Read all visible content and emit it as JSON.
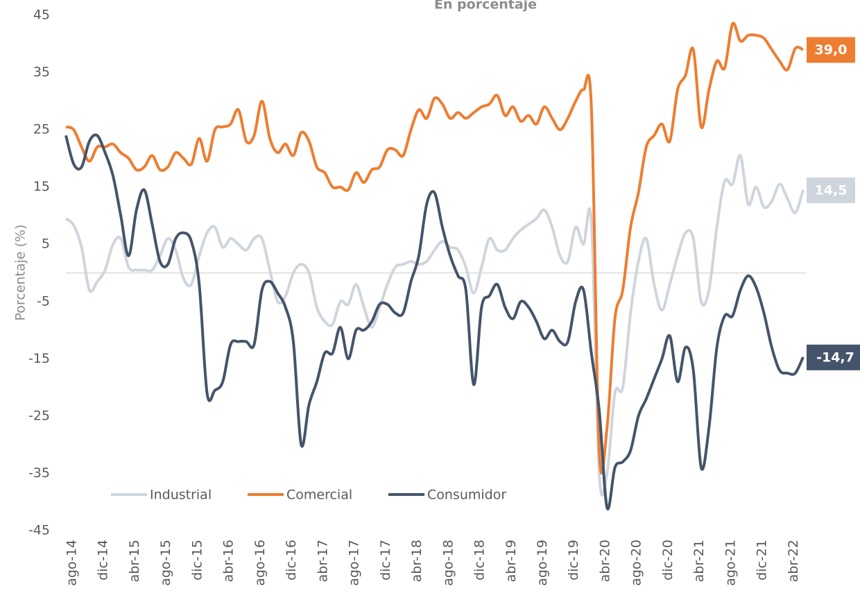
{
  "chart_data": {
    "type": "line",
    "subtitle": "En porcentaje",
    "y_label": "Porcentaje (%)",
    "categories": [
      "ago-14",
      null,
      null,
      null,
      "dic-14",
      null,
      null,
      null,
      "abr-15",
      null,
      null,
      null,
      "ago-15",
      null,
      null,
      null,
      "dic-15",
      null,
      null,
      null,
      "abr-16",
      null,
      null,
      null,
      "ago-16",
      null,
      null,
      null,
      "dic-16",
      null,
      null,
      null,
      "abr-17",
      null,
      null,
      null,
      "ago-17",
      null,
      null,
      null,
      "dic-17",
      null,
      null,
      null,
      "abr-18",
      null,
      null,
      null,
      "ago-18",
      null,
      null,
      null,
      "dic-18",
      null,
      null,
      null,
      "abr-19",
      null,
      null,
      null,
      "ago-19",
      null,
      null,
      null,
      "dic-19",
      null,
      null,
      null,
      "abr-20",
      null,
      null,
      null,
      "ago-20",
      null,
      null,
      null,
      "dic-20",
      null,
      null,
      null,
      "abr-21",
      null,
      null,
      null,
      "ago-21",
      null,
      null,
      null,
      "dic-21",
      null,
      null,
      null,
      "abr-22",
      null,
      null
    ],
    "ylim": [
      -45,
      45
    ],
    "yticks": [
      -45,
      -35,
      -25,
      -15,
      -5,
      5,
      15,
      25,
      35,
      45
    ],
    "legend": "bottom-left",
    "series": [
      {
        "name": "Industrial",
        "color": "#cfd5dd",
        "end_label": "14,5",
        "values": [
          9.5,
          8.3,
          4.5,
          -3,
          -1.5,
          0.5,
          5,
          6,
          1,
          0.5,
          0.5,
          0.5,
          3,
          6,
          4,
          -1,
          -2,
          3,
          7,
          8,
          4.5,
          6,
          5,
          4,
          6,
          6,
          0.5,
          -5,
          -4,
          0,
          1.5,
          0,
          -6,
          -8.5,
          -9,
          -5,
          -5.5,
          -2,
          -6,
          -9.5,
          -6,
          -2,
          1,
          1.5,
          2,
          1.5,
          2,
          4,
          5.5,
          4.5,
          4,
          1,
          -3.5,
          1,
          6,
          4,
          4,
          6,
          7.5,
          8.5,
          9.5,
          11,
          8,
          3,
          2,
          8,
          5,
          9,
          -35,
          -35,
          -21,
          -20,
          -7,
          2,
          6,
          -2,
          -6.5,
          -2,
          3,
          7,
          6,
          -5,
          -3,
          8,
          16,
          15.5,
          20.5,
          12,
          15,
          11.5,
          12.5,
          15.5,
          13,
          10.5,
          14.5
        ]
      },
      {
        "name": "Comercial",
        "color": "#ed7d31",
        "end_label": "39,0",
        "values": [
          25.5,
          25,
          22,
          19.5,
          22,
          22,
          22.5,
          21,
          20,
          18,
          18.5,
          20.5,
          18,
          18.5,
          21,
          20,
          19,
          23.5,
          19.5,
          25,
          25.5,
          26,
          28.5,
          23,
          24,
          30,
          23.5,
          21,
          22.5,
          20.5,
          24.5,
          23,
          18.5,
          17.5,
          15,
          15,
          14.5,
          17.5,
          15.8,
          18,
          18.5,
          21.5,
          21.5,
          20.5,
          25,
          28.5,
          27,
          30.5,
          29.5,
          27,
          28,
          27,
          28,
          29,
          29.5,
          31,
          27.5,
          29,
          26.5,
          27.5,
          26,
          29,
          27,
          25,
          27,
          30,
          32,
          29,
          -31,
          -27,
          -8,
          -3,
          8,
          14,
          22,
          24,
          26,
          23,
          32,
          34.5,
          39,
          25.5,
          32,
          37,
          35.8,
          43.5,
          40.5,
          41.5,
          41.5,
          41,
          39,
          37,
          35.5,
          39.2,
          39.0
        ]
      },
      {
        "name": "Consumidor",
        "color": "#44546a",
        "end_label": "-14,7",
        "values": [
          24,
          19,
          18.5,
          23,
          24,
          21,
          17,
          10,
          3,
          11,
          14.5,
          8.5,
          2,
          1.5,
          6,
          7,
          5.5,
          -2,
          -21,
          -20.5,
          -19,
          -12.5,
          -12,
          -12,
          -12.5,
          -3,
          -1.5,
          -3.5,
          -6,
          -12,
          -30,
          -23,
          -19,
          -14,
          -14,
          -9.5,
          -15,
          -10,
          -10,
          -8.5,
          -5.5,
          -5.5,
          -7,
          -7,
          -1.5,
          3,
          12,
          14,
          8,
          3,
          -0.5,
          -3,
          -19.5,
          -6,
          -4,
          -2,
          -6,
          -8,
          -5,
          -6,
          -8.5,
          -11.5,
          -10,
          -12,
          -12,
          -5,
          -3,
          -14,
          -24,
          -41,
          -34,
          -33,
          -31,
          -25,
          -22,
          -18.5,
          -15,
          -11,
          -19,
          -13,
          -17,
          -34,
          -27,
          -13,
          -7.5,
          -7.5,
          -3,
          -0.5,
          -2.5,
          -7,
          -13,
          -17,
          -17.5,
          -17.5,
          -14.7
        ]
      }
    ]
  }
}
